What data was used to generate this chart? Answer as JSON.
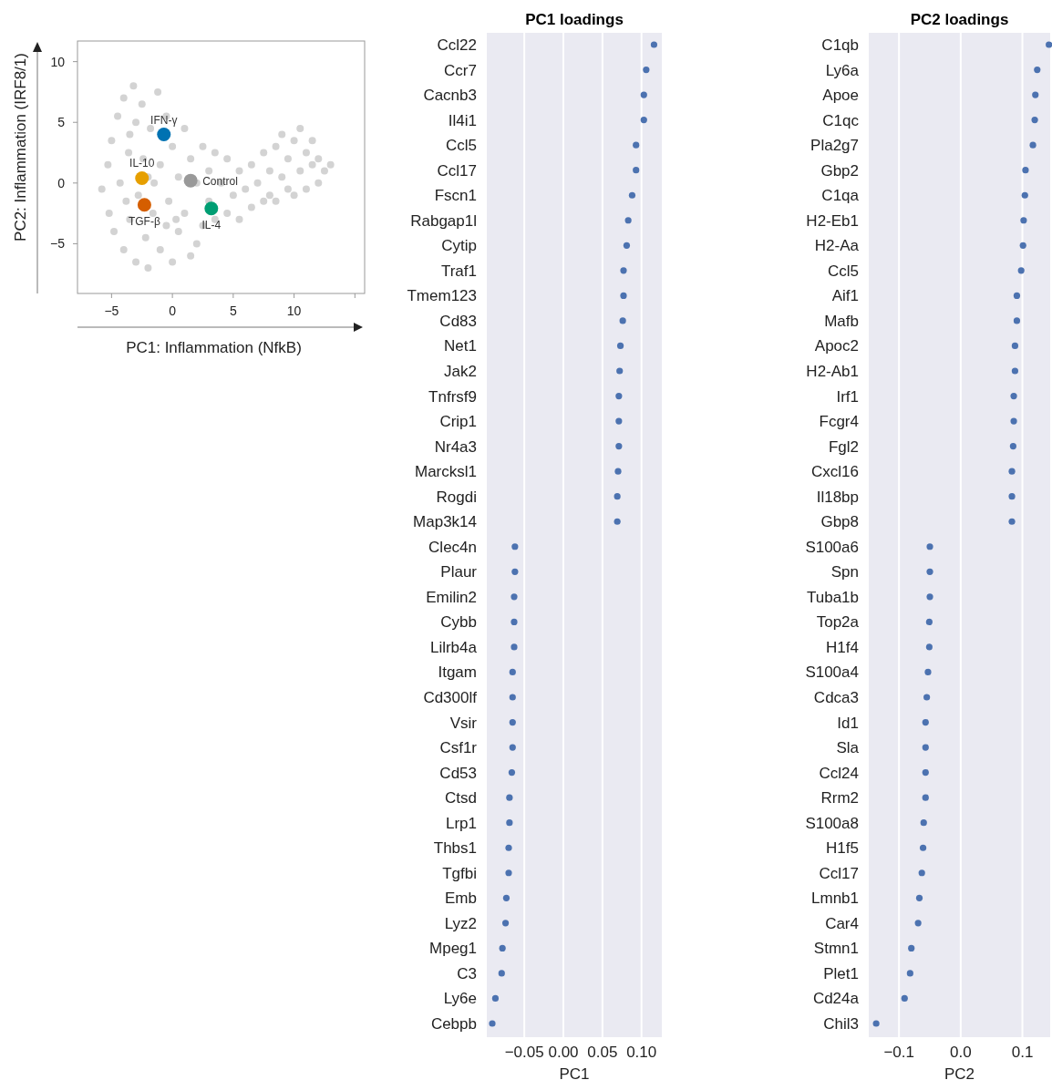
{
  "chart_data": [
    {
      "type": "scatter",
      "xlabel": "PC1: Inflammation (NfkB)",
      "ylabel": "PC2: Inflammation (IRF8/1)",
      "xlim": [
        -7.8,
        15.8
      ],
      "ylim": [
        -9.1,
        11.7
      ],
      "xticks": [
        -5,
        0,
        5,
        10,
        {
          "value": 15,
          "label": null
        }
      ],
      "yticks": [
        -5,
        0,
        5,
        10
      ],
      "marker": "circle",
      "series": [
        {
          "color": "#d3d3d3",
          "x": [
            -5.8,
            -5.3,
            -5.2,
            -5,
            -4.8,
            -4.5,
            -4.3,
            -4,
            -4,
            -3.6,
            -3.5,
            -3.2,
            -3,
            -3,
            -2.8,
            -2.5,
            -2.4,
            -2.2,
            -2,
            -1.8,
            -1.6,
            -1.2,
            -1,
            -1,
            -0.5,
            -0.3,
            0,
            0,
            0.5,
            0.5,
            1,
            1,
            1.5,
            2,
            2,
            2.5,
            2.5,
            3,
            3,
            3.5,
            4,
            4.5,
            4.5,
            5,
            5.5,
            5.5,
            6,
            6.5,
            6.5,
            7,
            7.5,
            7.5,
            8,
            8,
            8.5,
            8.5,
            9,
            9,
            9.5,
            9.5,
            10,
            10,
            10.5,
            10.5,
            11,
            11,
            11.5,
            11.5,
            12,
            12,
            12.5,
            13,
            -1.5,
            -3.8,
            0.3,
            1.5,
            -2,
            3.5,
            -0.5,
            -3.5
          ],
          "values": [
            -0.5,
            1.5,
            -2.5,
            3.5,
            -4,
            5.5,
            0,
            7,
            -5.5,
            2.5,
            -3,
            8,
            5,
            -6.5,
            -1,
            6.5,
            2,
            -4.5,
            -7,
            4.5,
            -2.5,
            7.5,
            1.5,
            -5.5,
            5.5,
            -1.5,
            3,
            -6.5,
            0.5,
            -4,
            4.5,
            -2.5,
            2,
            -5,
            0,
            3,
            -3.5,
            1,
            -1.5,
            -3,
            0,
            -2.5,
            2,
            -1,
            -3,
            1,
            -0.5,
            -2,
            1.5,
            0,
            -1.5,
            2.5,
            -1,
            1,
            3,
            -1.5,
            0.5,
            4,
            -0.5,
            2,
            3.5,
            -1,
            1,
            4.5,
            2.5,
            -0.5,
            1.5,
            3.5,
            0,
            2,
            1,
            1.5,
            0,
            -1.5,
            -3,
            -6,
            0.5,
            2.5,
            -3.5,
            4
          ]
        },
        {
          "name": "IFN-γ",
          "color": "#0072b2",
          "x": [
            -0.7
          ],
          "values": [
            4.0
          ]
        },
        {
          "name": "IL-10",
          "color": "#e69f00",
          "x": [
            -2.5
          ],
          "values": [
            0.4
          ]
        },
        {
          "name": "Control",
          "color": "#999999",
          "x": [
            1.5
          ],
          "values": [
            0.2
          ]
        },
        {
          "name": "TGF-β",
          "color": "#d55e00",
          "x": [
            -2.3
          ],
          "values": [
            -1.8
          ]
        },
        {
          "name": "IL-4",
          "color": "#009e73",
          "x": [
            3.2
          ],
          "values": [
            -2.1
          ]
        }
      ]
    },
    {
      "type": "scatter",
      "orientation": "horizontal",
      "title": "PC1 loadings",
      "xlabel": "PC1",
      "grid": "x",
      "marker": "circle",
      "color": "#4c72b0",
      "xlim": [
        -0.098,
        0.126
      ],
      "xticks": [
        {
          "value": -0.05,
          "label": "−0.05"
        },
        {
          "value": 0,
          "label": "0.00"
        },
        {
          "value": 0.05,
          "label": "0.05"
        },
        {
          "value": 0.1,
          "label": "0.10"
        }
      ],
      "categories": [
        "Ccl22",
        "Ccr7",
        "Cacnb3",
        "Il4i1",
        "Ccl5",
        "Ccl17",
        "Fscn1",
        "Rabgap1l",
        "Cytip",
        "Traf1",
        "Tmem123",
        "Cd83",
        "Net1",
        "Jak2",
        "Tnfrsf9",
        "Crip1",
        "Nr4a3",
        "Marcksl1",
        "Rogdi",
        "Map3k14",
        "Clec4n",
        "Plaur",
        "Emilin2",
        "Cybb",
        "Lilrb4a",
        "Itgam",
        "Cd300lf",
        "Vsir",
        "Csf1r",
        "Cd53",
        "Ctsd",
        "Lrp1",
        "Thbs1",
        "Tgfbi",
        "Emb",
        "Lyz2",
        "Mpeg1",
        "C3",
        "Ly6e",
        "Cebpb"
      ],
      "values": [
        0.116,
        0.106,
        0.103,
        0.103,
        0.093,
        0.093,
        0.088,
        0.083,
        0.081,
        0.077,
        0.077,
        0.076,
        0.073,
        0.072,
        0.071,
        0.071,
        0.071,
        0.07,
        0.069,
        0.069,
        -0.062,
        -0.062,
        -0.063,
        -0.063,
        -0.063,
        -0.065,
        -0.065,
        -0.065,
        -0.065,
        -0.066,
        -0.069,
        -0.069,
        -0.07,
        -0.07,
        -0.073,
        -0.074,
        -0.078,
        -0.079,
        -0.087,
        -0.091
      ]
    },
    {
      "type": "scatter",
      "orientation": "horizontal",
      "title": "PC2 loadings",
      "xlabel": "PC2",
      "grid": "x",
      "marker": "circle",
      "color": "#4c72b0",
      "xlim": [
        -0.149,
        0.145
      ],
      "xticks": [
        {
          "value": -0.1,
          "label": "−0.1"
        },
        {
          "value": 0,
          "label": "0.0"
        },
        {
          "value": 0.1,
          "label": "0.1"
        }
      ],
      "categories": [
        "C1qb",
        "Ly6a",
        "Apoe",
        "C1qc",
        "Pla2g7",
        "Gbp2",
        "C1qa",
        "H2-Eb1",
        "H2-Aa",
        "Ccl5",
        "Aif1",
        "Mafb",
        "Apoc2",
        "H2-Ab1",
        "Irf1",
        "Fcgr4",
        "Fgl2",
        "Cxcl16",
        "Il18bp",
        "Gbp8",
        "S100a6",
        "Spn",
        "Tuba1b",
        "Top2a",
        "H1f4",
        "S100a4",
        "Cdca3",
        "Id1",
        "Sla",
        "Ccl24",
        "Rrm2",
        "S100a8",
        "H1f5",
        "Ccl17",
        "Lmnb1",
        "Car4",
        "Stmn1",
        "Plet1",
        "Cd24a",
        "Chil3"
      ],
      "values": [
        0.143,
        0.124,
        0.121,
        0.12,
        0.117,
        0.105,
        0.104,
        0.102,
        0.101,
        0.098,
        0.091,
        0.091,
        0.088,
        0.088,
        0.086,
        0.086,
        0.085,
        0.083,
        0.083,
        0.083,
        -0.05,
        -0.05,
        -0.05,
        -0.051,
        -0.051,
        -0.053,
        -0.055,
        -0.057,
        -0.057,
        -0.057,
        -0.057,
        -0.06,
        -0.061,
        -0.063,
        -0.067,
        -0.069,
        -0.08,
        -0.082,
        -0.091,
        -0.137
      ]
    }
  ]
}
